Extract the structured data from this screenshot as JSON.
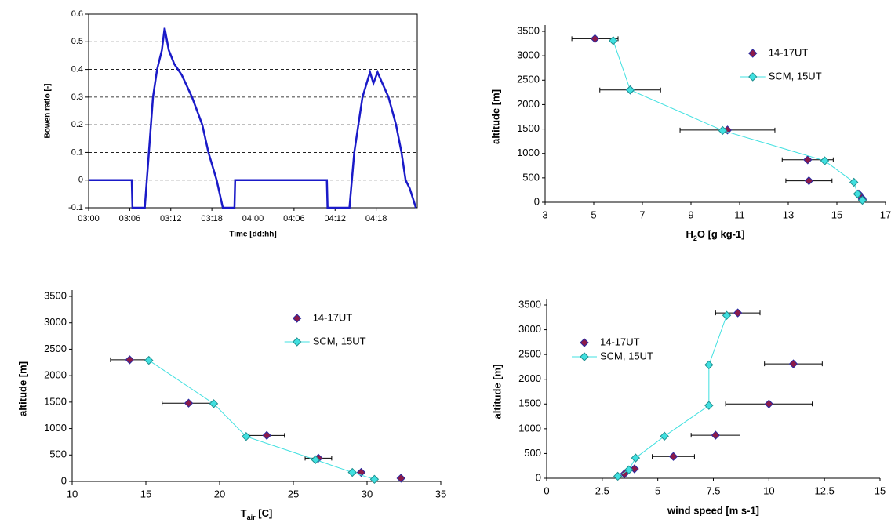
{
  "chart_data": [
    {
      "type": "line",
      "ylabel": "Bowen ratio [-]",
      "xlabel": "Time [dd:hh]",
      "grid": true,
      "color": "#1a1ac8",
      "xlim": [
        0,
        48
      ],
      "ylim": [
        -0.1,
        0.6
      ],
      "xticks": [
        {
          "value": 0,
          "label": "03:00"
        },
        {
          "value": 6,
          "label": "03:06"
        },
        {
          "value": 12,
          "label": "03:12"
        },
        {
          "value": 18,
          "label": "03:18"
        },
        {
          "value": 24,
          "label": "04:00"
        },
        {
          "value": 30,
          "label": "04:06"
        },
        {
          "value": 36,
          "label": "04:12"
        },
        {
          "value": 42,
          "label": "04:18"
        }
      ],
      "yticks": [
        -0.1,
        0,
        0.1,
        0.2,
        0.3,
        0.4,
        0.5,
        0.6
      ],
      "x": [
        0,
        6.3,
        6.4,
        8.2,
        8.8,
        9.4,
        10,
        10.7,
        11.1,
        11.7,
        12.5,
        13.6,
        15.1,
        16.6,
        17.5,
        18.7,
        19.6,
        21.3,
        21.4,
        34.8,
        34.9,
        38.1,
        38.8,
        39.4,
        40.0,
        41.1,
        41.6,
        42.2,
        42.9,
        43.8,
        44.9,
        45.7,
        46.3,
        46.9,
        47.8
      ],
      "values": [
        0,
        0,
        -0.1,
        -0.1,
        0.1,
        0.3,
        0.4,
        0.47,
        0.55,
        0.47,
        0.42,
        0.38,
        0.3,
        0.2,
        0.1,
        0,
        -0.1,
        -0.1,
        0,
        0,
        -0.1,
        -0.1,
        0.1,
        0.2,
        0.3,
        0.39,
        0.35,
        0.39,
        0.35,
        0.3,
        0.2,
        0.1,
        0,
        -0.03,
        -0.1
      ]
    },
    {
      "type": "scatter",
      "ylabel": "altitude [m]",
      "xlabel": [
        "H",
        "2",
        "O [g kg-1]"
      ],
      "legend": "upper right",
      "xlim": [
        3,
        17
      ],
      "ylim": [
        0,
        3500
      ],
      "xticks": [
        3,
        5,
        7,
        9,
        11,
        13,
        15,
        17
      ],
      "yticks": [
        0,
        500,
        1000,
        1500,
        2000,
        2500,
        3000,
        3500
      ],
      "series": [
        {
          "name": "14-17UT",
          "color": "#8b1a4a",
          "x": [
            5.05,
            6.5,
            10.5,
            13.8,
            13.85,
            15.9,
            16.0,
            16.05
          ],
          "values": [
            3350,
            2300,
            1480,
            870,
            440,
            170,
            100,
            60
          ],
          "xerr": [
            0.95,
            1.25,
            1.95,
            1.05,
            0.95,
            null,
            null,
            null
          ]
        },
        {
          "name": "SCM, 15UT",
          "color": "#40e0e0",
          "line": true,
          "x": [
            5.8,
            6.5,
            10.3,
            14.5,
            15.7,
            15.85,
            16.05
          ],
          "values": [
            3310,
            2300,
            1470,
            850,
            410,
            170,
            40
          ]
        }
      ]
    },
    {
      "type": "scatter",
      "ylabel": "altitude [m]",
      "xlabel": [
        "T",
        "air",
        " [C]"
      ],
      "legend": "upper right",
      "xlim": [
        10,
        35
      ],
      "ylim": [
        0,
        3500
      ],
      "xticks": [
        10,
        15,
        20,
        25,
        30,
        35
      ],
      "yticks": [
        0,
        500,
        1000,
        1500,
        2000,
        2500,
        3000,
        3500
      ],
      "series": [
        {
          "name": "14-17UT",
          "color": "#8b1a4a",
          "x": [
            13.9,
            17.9,
            23.2,
            26.7,
            29.6,
            32.3
          ],
          "values": [
            2300,
            1480,
            870,
            440,
            170,
            60
          ],
          "xerr": [
            1.3,
            1.8,
            1.2,
            0.9,
            null,
            null
          ]
        },
        {
          "name": "SCM, 15UT",
          "color": "#40e0e0",
          "line": true,
          "x": [
            15.2,
            19.6,
            21.8,
            26.5,
            29.0,
            30.5
          ],
          "values": [
            2290,
            1470,
            850,
            410,
            170,
            40
          ]
        }
      ]
    },
    {
      "type": "scatter",
      "ylabel": "altitude [m]",
      "xlabel": "wind speed [m s-1]",
      "legend": "upper left",
      "xlim": [
        0,
        15
      ],
      "ylim": [
        0,
        3500
      ],
      "xticks": [
        0,
        2.5,
        5,
        7.5,
        10,
        12.5,
        15
      ],
      "yticks": [
        0,
        500,
        1000,
        1500,
        2000,
        2500,
        3000,
        3500
      ],
      "series": [
        {
          "name": "14-17UT",
          "color": "#8b1a4a",
          "x": [
            8.6,
            11.1,
            10.0,
            7.6,
            5.7,
            3.95,
            3.5
          ],
          "values": [
            3340,
            2310,
            1500,
            870,
            440,
            190,
            90
          ],
          "xerr": [
            1.0,
            1.3,
            1.95,
            1.1,
            0.95,
            null,
            null
          ]
        },
        {
          "name": "SCM, 15UT",
          "color": "#40e0e0",
          "line": true,
          "x": [
            8.1,
            7.3,
            7.3,
            5.3,
            4.0,
            3.7,
            3.2
          ],
          "values": [
            3290,
            2290,
            1470,
            850,
            410,
            170,
            40
          ]
        }
      ]
    }
  ]
}
